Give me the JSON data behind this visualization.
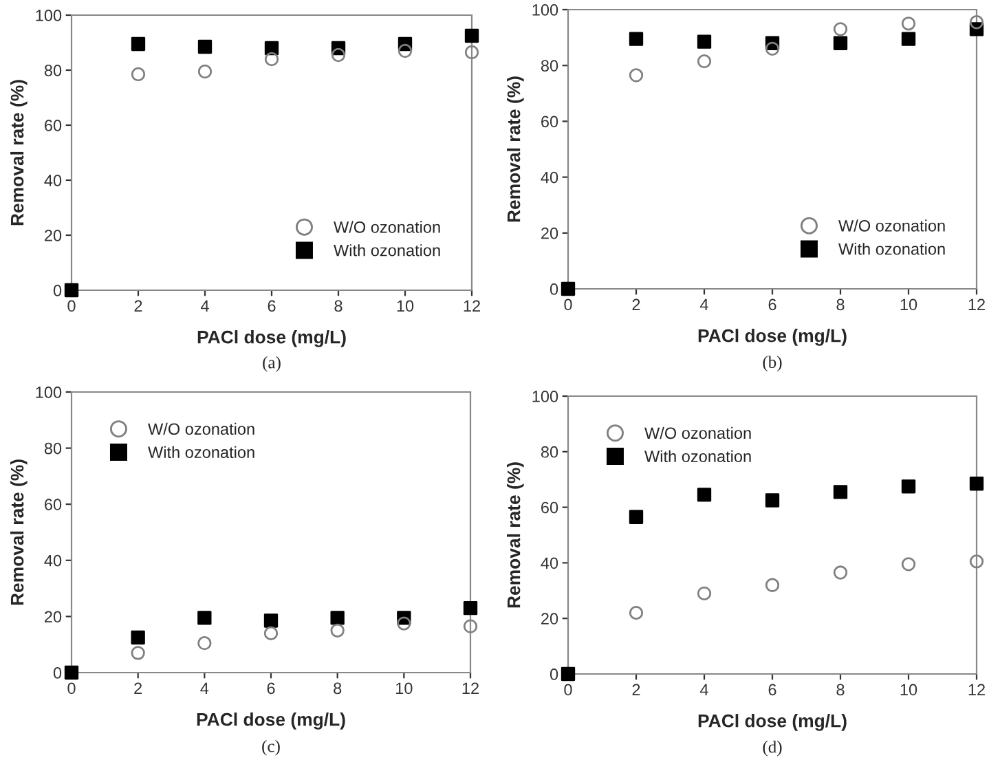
{
  "chart_data": [
    {
      "type": "scatter",
      "xlabel": "PACl dose (mg/L)",
      "ylabel": "Removal rate (%)",
      "x": [
        0,
        2,
        4,
        6,
        8,
        10,
        12
      ],
      "xlim": [
        0,
        12
      ],
      "ylim": [
        0,
        100
      ],
      "xticks": [
        0,
        2,
        4,
        6,
        8,
        10,
        12
      ],
      "yticks": [
        0,
        20,
        40,
        60,
        80,
        100
      ],
      "grid": false,
      "legend": "bottom right",
      "annotations": [
        "(a)"
      ],
      "series": [
        {
          "name": "W/O ozonation",
          "color": "#808080",
          "marker": "circle",
          "values": [
            null,
            78.5,
            79.5,
            84,
            85.5,
            87,
            86.5
          ]
        },
        {
          "name": "With ozonation",
          "color": "#000000",
          "marker": "square",
          "values": [
            0,
            89.5,
            88.5,
            88,
            88,
            89.5,
            92.5
          ]
        }
      ]
    },
    {
      "type": "scatter",
      "xlabel": "PACl dose (mg/L)",
      "ylabel": "Removal rate (%)",
      "x": [
        0,
        2,
        4,
        6,
        8,
        10,
        12
      ],
      "xlim": [
        0,
        12
      ],
      "ylim": [
        0,
        100
      ],
      "xticks": [
        0,
        2,
        4,
        6,
        8,
        10,
        12
      ],
      "yticks": [
        0,
        20,
        40,
        60,
        80,
        100
      ],
      "grid": false,
      "legend": "bottom right",
      "annotations": [
        "(b)"
      ],
      "series": [
        {
          "name": "W/O ozonation",
          "color": "#808080",
          "marker": "circle",
          "values": [
            null,
            76.5,
            81.5,
            86,
            93,
            95,
            95.5
          ]
        },
        {
          "name": "With ozonation",
          "color": "#000000",
          "marker": "square",
          "values": [
            0,
            89.5,
            88.5,
            88,
            88,
            89.5,
            93
          ]
        }
      ]
    },
    {
      "type": "scatter",
      "xlabel": "PACl dose (mg/L)",
      "ylabel": "Removal rate (%)",
      "x": [
        0,
        2,
        4,
        6,
        8,
        10,
        12
      ],
      "xlim": [
        0,
        12
      ],
      "ylim": [
        0,
        100
      ],
      "xticks": [
        0,
        2,
        4,
        6,
        8,
        10,
        12
      ],
      "yticks": [
        0,
        20,
        40,
        60,
        80,
        100
      ],
      "grid": false,
      "legend": "top left",
      "annotations": [
        "(c)"
      ],
      "series": [
        {
          "name": "W/O ozonation",
          "color": "#808080",
          "marker": "circle",
          "values": [
            null,
            7,
            10.5,
            14,
            15,
            17.5,
            16.5
          ]
        },
        {
          "name": "With ozonation",
          "color": "#000000",
          "marker": "square",
          "values": [
            0,
            12.5,
            19.5,
            18.5,
            19.5,
            19.5,
            23
          ]
        }
      ]
    },
    {
      "type": "scatter",
      "xlabel": "PACl dose (mg/L)",
      "ylabel": "Removal rate (%)",
      "x": [
        0,
        2,
        4,
        6,
        8,
        10,
        12
      ],
      "xlim": [
        0,
        12
      ],
      "ylim": [
        0,
        100
      ],
      "xticks": [
        0,
        2,
        4,
        6,
        8,
        10,
        12
      ],
      "yticks": [
        0,
        20,
        40,
        60,
        80,
        100
      ],
      "grid": false,
      "legend": "top left",
      "annotations": [
        "(d)"
      ],
      "series": [
        {
          "name": "W/O ozonation",
          "color": "#808080",
          "marker": "circle",
          "values": [
            null,
            22,
            29,
            32,
            36.5,
            39.5,
            40.5
          ]
        },
        {
          "name": "With ozonation",
          "color": "#000000",
          "marker": "square",
          "values": [
            0,
            56.5,
            64.5,
            62.5,
            65.5,
            67.5,
            68.5
          ]
        }
      ]
    }
  ]
}
